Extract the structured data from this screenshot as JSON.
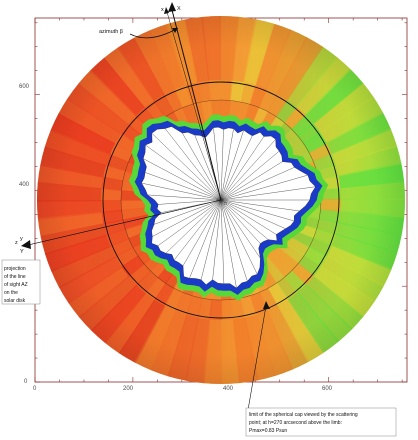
{
  "plot": {
    "x_ticks": [
      "0",
      "200",
      "400",
      "600"
    ],
    "y_ticks": [
      "0",
      "200",
      "400",
      "600"
    ],
    "x_tick_values": [
      0,
      200,
      400,
      600
    ],
    "y_tick_values": [
      0,
      200,
      400,
      600
    ],
    "xlim": [
      0,
      760
    ],
    "ylim": [
      0,
      760
    ]
  },
  "labels": {
    "azimuth": "azimuth β",
    "axis_top_x_small": "x",
    "axis_top_x_big": "X",
    "axis_left_z": "z",
    "axis_left_y_small": "y",
    "axis_left_y_big": "Y",
    "projection_note": [
      "projection",
      "of the line",
      "of sight AZ",
      "on the",
      "solar disk"
    ],
    "limit_note": [
      "limit of the spherical cap viewed by the scattering",
      "point; at h=270 arcsecond above the limb:",
      "Pmax=0.83 Psun"
    ]
  },
  "colors": {
    "frame": "#8b2b2b",
    "red": "#e8321e",
    "orange": "#f0792a",
    "yellow": "#d8d83a",
    "green": "#58e040",
    "blue": "#1838c8",
    "cyan": "#28b8a8"
  }
}
